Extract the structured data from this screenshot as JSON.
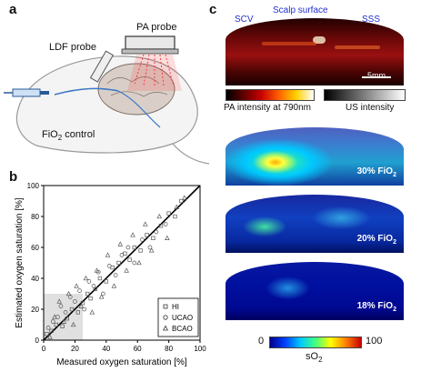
{
  "panels": {
    "a": "a",
    "b": "b",
    "c": "c"
  },
  "panel_a": {
    "pa_probe": "PA probe",
    "ldf_probe": "LDF probe",
    "fio2_control": "FiO",
    "fio2_sub": "2",
    "fio2_suffix": " control"
  },
  "panel_c": {
    "scv": "SCV",
    "scalp_surface": "Scalp surface",
    "sss": "SSS",
    "scale_bar": "5mm",
    "pa_colorbar_label": "PA intensity at 790nm",
    "us_colorbar_label": "US intensity",
    "maps": [
      {
        "pre": "30% FiO",
        "sub": "2"
      },
      {
        "pre": "20% FiO",
        "sub": "2"
      },
      {
        "pre": "18% FiO",
        "sub": "2"
      }
    ],
    "so2_min": "0",
    "so2_max": "100",
    "so2_label": "sO",
    "so2_sub": "2"
  },
  "chart_data": {
    "type": "scatter",
    "xlabel": "Measured oxygen saturation [%]",
    "ylabel": "Estimated oxygen saturation [%]",
    "xlim": [
      0,
      100
    ],
    "ylim": [
      0,
      100
    ],
    "xticks": [
      "0",
      "20",
      "40",
      "60",
      "80",
      "100"
    ],
    "yticks": [
      "0",
      "20",
      "40",
      "60",
      "80",
      "100"
    ],
    "legend_position": "bottom-right",
    "fit_line": {
      "x": [
        0,
        100
      ],
      "y": [
        0,
        100
      ]
    },
    "series": [
      {
        "name": "HI",
        "marker": "square",
        "x": [
          2,
          5,
          8,
          12,
          15,
          18,
          22,
          25,
          28,
          30,
          33,
          36,
          40,
          44,
          48,
          52,
          55,
          58,
          62,
          66,
          70,
          75,
          80,
          84,
          88
        ],
        "y": [
          4,
          6,
          10,
          9,
          14,
          20,
          18,
          24,
          30,
          27,
          33,
          40,
          38,
          47,
          50,
          56,
          52,
          60,
          58,
          68,
          66,
          74,
          82,
          80,
          90
        ]
      },
      {
        "name": "UCAO",
        "marker": "circle",
        "x": [
          3,
          6,
          9,
          11,
          14,
          17,
          20,
          23,
          26,
          29,
          32,
          35,
          38,
          42,
          46,
          50,
          54,
          58,
          63,
          68,
          72,
          78
        ],
        "y": [
          8,
          12,
          15,
          22,
          18,
          28,
          25,
          32,
          20,
          38,
          35,
          44,
          30,
          48,
          42,
          55,
          60,
          50,
          65,
          60,
          70,
          75
        ]
      },
      {
        "name": "BCAO",
        "marker": "triangle",
        "x": [
          4,
          7,
          10,
          13,
          16,
          19,
          21,
          24,
          27,
          31,
          34,
          37,
          41,
          45,
          49,
          53,
          57,
          61,
          65,
          69,
          74,
          79,
          85,
          90
        ],
        "y": [
          2,
          15,
          25,
          12,
          30,
          10,
          35,
          22,
          40,
          18,
          45,
          28,
          55,
          35,
          62,
          45,
          68,
          50,
          75,
          58,
          80,
          66,
          86,
          92
        ]
      }
    ]
  },
  "colors": {
    "so2_colormap": [
      "#00008c",
      "#0040ff",
      "#00c8ff",
      "#40ff80",
      "#ffff00",
      "#ff8000",
      "#c80000"
    ],
    "pa_colormap": [
      "#000000",
      "#600000",
      "#c80000",
      "#ff6000",
      "#ffd000",
      "#ffffff"
    ],
    "us_colormap": [
      "#000000",
      "#ffffff"
    ]
  }
}
